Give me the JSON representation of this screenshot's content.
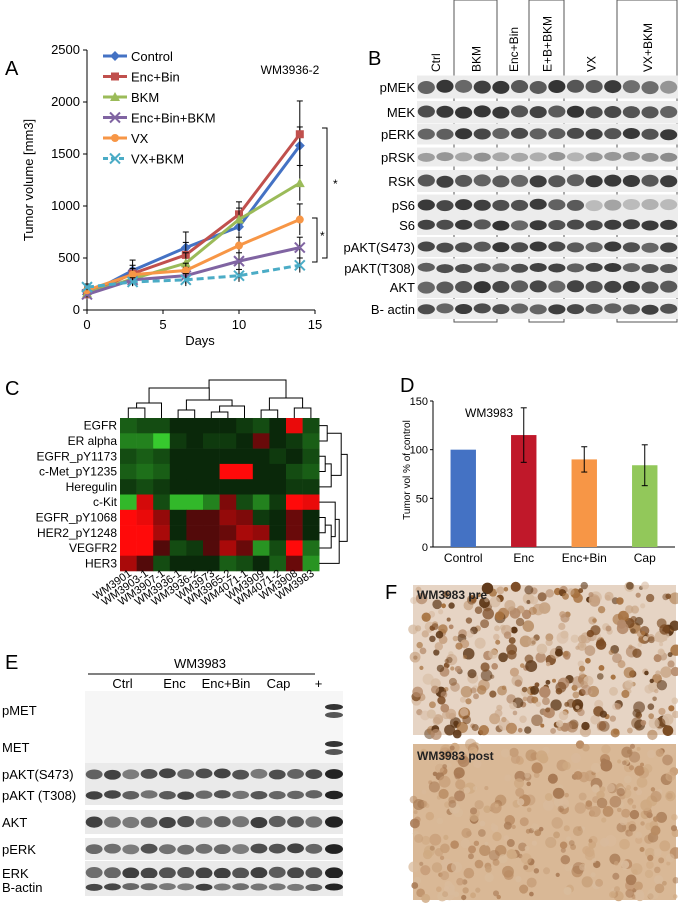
{
  "panels": {
    "A": {
      "letter": "A",
      "sample_label": "WM3936-2",
      "significance": [
        "*",
        "*"
      ],
      "chart_data": {
        "type": "line",
        "ylabel": "Tumor volume [mm3]",
        "xlabel": "Days",
        "xlim": [
          0,
          15
        ],
        "ylim": [
          0,
          2500
        ],
        "xticks": [
          "0",
          "5",
          "10",
          "15"
        ],
        "yticks": [
          "0",
          "500",
          "1000",
          "1500",
          "2000",
          "2500"
        ],
        "x": [
          0,
          3,
          6.5,
          10,
          14
        ],
        "legend_position": "top-left",
        "series": [
          {
            "name": "Control",
            "color": "#4472C4",
            "marker": "diamond",
            "values": [
              150,
              380,
              600,
              800,
              1580
            ],
            "err": [
              40,
              100,
              150,
              100,
              180
            ]
          },
          {
            "name": "Enc+Bin",
            "color": "#C0504D",
            "marker": "square",
            "values": [
              150,
              350,
              530,
              920,
              1690
            ],
            "err": [
              40,
              80,
              120,
              120,
              320
            ]
          },
          {
            "name": "BKM",
            "color": "#9BBB59",
            "marker": "triangle",
            "values": [
              160,
              300,
              450,
              870,
              1220
            ],
            "err": [
              40,
              60,
              100,
              110,
              170
            ]
          },
          {
            "name": "Enc+Bin+BKM",
            "color": "#8064A2",
            "marker": "x",
            "values": [
              150,
              290,
              330,
              470,
              600
            ],
            "err": [
              30,
              60,
              80,
              80,
              100
            ]
          },
          {
            "name": "VX",
            "color": "#F79646",
            "marker": "circle",
            "values": [
              190,
              340,
              380,
              620,
              870
            ],
            "err": [
              30,
              60,
              70,
              80,
              150
            ]
          },
          {
            "name": "VX+BKM",
            "color": "#4BACC6",
            "marker": "x",
            "dashed": true,
            "values": [
              220,
              270,
              290,
              330,
              430
            ],
            "err": [
              30,
              40,
              60,
              60,
              70
            ]
          }
        ]
      }
    },
    "B": {
      "letter": "B",
      "groups": [
        "Ctrl",
        "BKM",
        "Enc+Bin",
        "E+B+BKM",
        "VX",
        "VX+BKM"
      ],
      "rows": [
        "pMEK",
        "MEK",
        "pERK",
        "pRSK",
        "RSK",
        "pS6",
        "S6",
        "pAKT(S473)",
        "pAKT(T308)",
        "AKT",
        "B- actin"
      ]
    },
    "C": {
      "letter": "C",
      "chart_data": {
        "type": "heatmap",
        "rows": [
          "EGFR",
          "ER alpha",
          "EGFR_pY1173",
          "c-Met_pY1235",
          "Heregulin",
          "c-Kit",
          "EGFR_pY1068",
          "HER2_pY1248",
          "VEGFR2",
          "HER3"
        ],
        "columns": [
          "WM3901",
          "WM3903-1",
          "WM3907-1",
          "WM3936-1",
          "WM3936-2",
          "WM3973",
          "WM3965-2",
          "WM4071-1",
          "WM3909",
          "WM4071-2",
          "WM3908",
          "WM3983"
        ],
        "values": [
          [
            0.3,
            0.2,
            0.2,
            0.0,
            0.0,
            0.0,
            0.0,
            0.1,
            0.2,
            0.0,
            -0.9,
            0.2
          ],
          [
            0.5,
            0.5,
            0.9,
            0.1,
            0.0,
            0.1,
            0.1,
            0.0,
            -0.3,
            0.0,
            0.1,
            0.3
          ],
          [
            0.2,
            0.3,
            0.2,
            0.0,
            0.0,
            0.0,
            0.0,
            0.0,
            0.0,
            0.1,
            0.0,
            0.2
          ],
          [
            0.3,
            0.4,
            0.3,
            0.0,
            0.0,
            0.0,
            -1.0,
            -1.0,
            0.0,
            0.0,
            0.2,
            0.3
          ],
          [
            0.1,
            0.2,
            0.1,
            0.0,
            0.0,
            0.0,
            0.0,
            0.0,
            0.0,
            0.0,
            0.1,
            0.1
          ],
          [
            0.8,
            -0.8,
            0.2,
            0.8,
            0.8,
            0.5,
            -0.4,
            0.2,
            0.5,
            0.1,
            -1.0,
            -0.9
          ],
          [
            -1.0,
            -0.9,
            -0.5,
            0.0,
            -0.2,
            -0.2,
            -0.5,
            -0.4,
            0.1,
            0.0,
            -0.3,
            0.0
          ],
          [
            -1.0,
            -1.0,
            -0.6,
            0.0,
            -0.2,
            -0.2,
            -0.3,
            -0.6,
            -0.5,
            0.0,
            -0.3,
            0.0
          ],
          [
            -1.0,
            -1.0,
            -0.2,
            0.2,
            0.1,
            -0.2,
            -0.6,
            -0.3,
            0.6,
            0.2,
            -1.0,
            0.4
          ],
          [
            -0.6,
            -0.2,
            0.2,
            0.0,
            0.0,
            0.0,
            0.3,
            0.2,
            0.0,
            0.3,
            -0.3,
            0.6
          ]
        ]
      }
    },
    "D": {
      "letter": "D",
      "sample_label": "WM3983",
      "chart_data": {
        "type": "bar",
        "categories": [
          "Control",
          "Enc",
          "Enc+Bin",
          "Cap"
        ],
        "values": [
          100,
          115,
          90,
          84
        ],
        "errors": [
          0,
          28,
          13,
          21
        ],
        "colors": [
          "#4472C4",
          "#C0182A",
          "#F79646",
          "#92C85A"
        ],
        "ylabel": "Tumor vol % of control",
        "ylim": [
          0,
          150
        ],
        "yticks": [
          "0",
          "50",
          "100",
          "150"
        ]
      }
    },
    "E": {
      "letter": "E",
      "sample_label": "WM3983",
      "groups": [
        "Ctrl",
        "Enc",
        "Enc+Bin",
        "Cap",
        "+"
      ],
      "rows": [
        "pMET",
        "MET",
        "pAKT(S473)",
        "pAKT (T308)",
        "AKT",
        "pERK",
        "ERK",
        "B-actin"
      ]
    },
    "F": {
      "letter": "F",
      "images": [
        "WM3983 pre",
        "WM3983 post"
      ]
    }
  }
}
